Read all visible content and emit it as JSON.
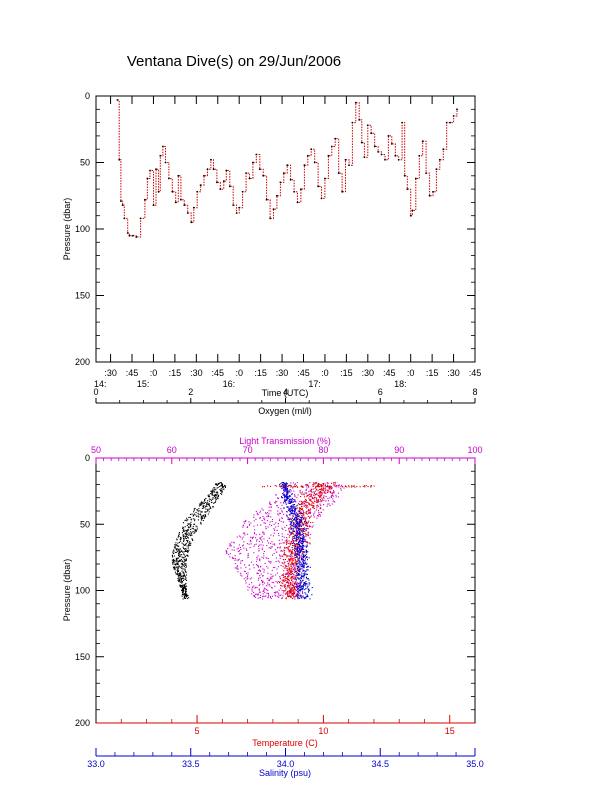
{
  "page": {
    "title": "Ventana Dive(s) on 29/Jun/2006"
  },
  "colors": {
    "axis": "#000000",
    "depth_trace": "#cc0000",
    "oxygen": "#000000",
    "light": "#cc00cc",
    "temperature": "#dd0000",
    "salinity": "#0000cc"
  },
  "chart_data": [
    {
      "type": "line",
      "title": "Ventana Dive(s) on 29/Jun/2006",
      "xlabel": "Time (UTC)",
      "ylabel": "Pressure (dbar)",
      "xlim": [
        14.33,
        18.75
      ],
      "ylim": [
        200,
        0
      ],
      "y_reversed": true,
      "x_ticks": [
        {
          "x": 14.5,
          "label": ":30",
          "hour": "14:"
        },
        {
          "x": 14.75,
          "label": ":45",
          "hour": ""
        },
        {
          "x": 15.0,
          "label": ":0",
          "hour": "15:"
        },
        {
          "x": 15.25,
          "label": ":15",
          "hour": ""
        },
        {
          "x": 15.5,
          "label": ":30",
          "hour": ""
        },
        {
          "x": 15.75,
          "label": ":45",
          "hour": ""
        },
        {
          "x": 16.0,
          "label": ":0",
          "hour": "16:"
        },
        {
          "x": 16.25,
          "label": ":15",
          "hour": ""
        },
        {
          "x": 16.5,
          "label": ":30",
          "hour": ""
        },
        {
          "x": 16.75,
          "label": ":45",
          "hour": ""
        },
        {
          "x": 17.0,
          "label": ":0",
          "hour": "17:"
        },
        {
          "x": 17.25,
          "label": ":15",
          "hour": ""
        },
        {
          "x": 17.5,
          "label": ":30",
          "hour": ""
        },
        {
          "x": 17.75,
          "label": ":45",
          "hour": ""
        },
        {
          "x": 18.0,
          "label": ":0",
          "hour": "18:"
        },
        {
          "x": 18.25,
          "label": ":15",
          "hour": ""
        },
        {
          "x": 18.5,
          "label": ":30",
          "hour": ""
        },
        {
          "x": 18.75,
          "label": ":45",
          "hour": ""
        }
      ],
      "y_ticks": [
        0,
        50,
        100,
        150,
        200
      ],
      "series": [
        {
          "x": [
            14.58,
            14.6,
            14.62,
            14.64,
            14.66,
            14.7,
            14.72,
            14.76,
            14.8,
            14.85,
            14.9,
            14.93,
            14.96,
            15.0,
            15.03,
            15.06,
            15.08,
            15.11,
            15.14,
            15.18,
            15.22,
            15.26,
            15.29,
            15.32,
            15.36,
            15.4,
            15.44,
            15.47,
            15.51,
            15.55,
            15.59,
            15.63,
            15.67,
            15.7,
            15.74,
            15.78,
            15.82,
            15.85,
            15.89,
            15.93,
            15.97,
            16.0,
            16.04,
            16.08,
            16.12,
            16.16,
            16.2,
            16.24,
            16.28,
            16.32,
            16.36,
            16.4,
            16.44,
            16.48,
            16.52,
            16.56,
            16.6,
            16.64,
            16.68,
            16.72,
            16.76,
            16.8,
            16.84,
            16.88,
            16.92,
            16.96,
            17.0,
            17.04,
            17.08,
            17.12,
            17.16,
            17.2,
            17.24,
            17.28,
            17.32,
            17.36,
            17.4,
            17.43,
            17.46,
            17.5,
            17.54,
            17.58,
            17.62,
            17.66,
            17.7,
            17.74,
            17.78,
            17.82,
            17.86,
            17.9,
            17.93,
            17.96,
            18.0,
            18.02,
            18.06,
            18.1,
            18.14,
            18.18,
            18.22,
            18.26,
            18.3,
            18.34,
            18.38,
            18.42,
            18.46,
            18.5,
            18.54
          ],
          "y": [
            3,
            48,
            79,
            82,
            92,
            103,
            105,
            105,
            106,
            92,
            78,
            62,
            56,
            82,
            55,
            72,
            45,
            38,
            50,
            62,
            72,
            80,
            60,
            78,
            82,
            88,
            95,
            84,
            72,
            67,
            60,
            55,
            48,
            55,
            65,
            70,
            64,
            56,
            68,
            82,
            88,
            84,
            72,
            58,
            62,
            50,
            44,
            55,
            60,
            78,
            92,
            85,
            75,
            65,
            58,
            52,
            63,
            72,
            80,
            70,
            52,
            45,
            40,
            50,
            68,
            77,
            62,
            45,
            38,
            32,
            58,
            72,
            48,
            52,
            20,
            5,
            18,
            35,
            46,
            22,
            28,
            38,
            42,
            44,
            48,
            30,
            36,
            45,
            48,
            20,
            60,
            70,
            90,
            86,
            62,
            45,
            34,
            58,
            75,
            72,
            55,
            48,
            40,
            20,
            20,
            15,
            10
          ]
        }
      ]
    },
    {
      "type": "scatter",
      "ylabel": "Pressure (dbar)",
      "ylim": [
        200,
        0
      ],
      "y_reversed": true,
      "y_ticks": [
        0,
        50,
        100,
        150,
        200
      ],
      "axes": {
        "oxygen": {
          "label": "Oxygen (ml/l)",
          "lim": [
            0,
            8
          ],
          "ticks": [
            "0",
            "2",
            "4",
            "6",
            "8"
          ]
        },
        "light": {
          "label": "Light Transmission (%)",
          "lim": [
            50,
            100
          ],
          "ticks": [
            "50",
            "60",
            "70",
            "80",
            "90",
            "100"
          ]
        },
        "temperature": {
          "label": "Temperature (C)",
          "lim": [
            1,
            16
          ],
          "ticks": [
            "5",
            "10",
            "15"
          ]
        },
        "salinity": {
          "label": "Salinity (psu)",
          "lim": [
            33.0,
            35.0
          ],
          "ticks": [
            "33.0",
            "33.5",
            "34.0",
            "34.5",
            "35.0"
          ]
        }
      },
      "series": [
        {
          "name": "Oxygen (ml/l)",
          "axis": "oxygen",
          "p": [
            20,
            30,
            40,
            50,
            60,
            70,
            80,
            90,
            100,
            105
          ],
          "x_left": [
            2.5,
            2.3,
            2.0,
            1.8,
            1.7,
            1.6,
            1.6,
            1.7,
            1.8,
            1.8
          ],
          "x_right": [
            2.75,
            2.6,
            2.4,
            2.2,
            2.05,
            1.95,
            1.9,
            1.9,
            1.9,
            1.95
          ]
        },
        {
          "name": "Light Transmission (%)",
          "axis": "light",
          "p": [
            20,
            30,
            40,
            50,
            60,
            70,
            80,
            90,
            100,
            105
          ],
          "x_left": [
            75.5,
            73.0,
            70.5,
            69.0,
            68.0,
            67.0,
            68.0,
            69.0,
            70.0,
            71.0
          ],
          "x_right": [
            83.0,
            82.0,
            80.0,
            79.0,
            78.0,
            77.5,
            77.5,
            77.0,
            77.0,
            77.0
          ]
        },
        {
          "name": "Temperature (C)",
          "axis": "temperature",
          "p": [
            20,
            30,
            40,
            50,
            60,
            70,
            80,
            90,
            100,
            105
          ],
          "center": [
            10.0,
            9.6,
            9.2,
            9.0,
            8.9,
            8.8,
            8.7,
            8.7,
            8.7,
            8.7
          ],
          "spread": [
            0.5,
            0.4,
            0.4,
            0.35,
            0.35,
            0.35,
            0.3,
            0.3,
            0.3,
            0.3
          ]
        },
        {
          "name": "Salinity (psu)",
          "axis": "salinity",
          "p": [
            20,
            30,
            40,
            50,
            60,
            70,
            80,
            90,
            100,
            105
          ],
          "center": [
            33.99,
            34.01,
            34.04,
            34.06,
            34.07,
            34.08,
            34.08,
            34.09,
            34.09,
            34.09
          ],
          "spread": [
            0.02,
            0.02,
            0.03,
            0.03,
            0.03,
            0.03,
            0.03,
            0.03,
            0.03,
            0.03
          ]
        },
        {
          "name": "Temperature (C)",
          "axis": "temperature",
          "kind": "horizontal-band",
          "p": [
            21
          ],
          "x_range": [
            7.5,
            12.0
          ]
        }
      ]
    }
  ]
}
